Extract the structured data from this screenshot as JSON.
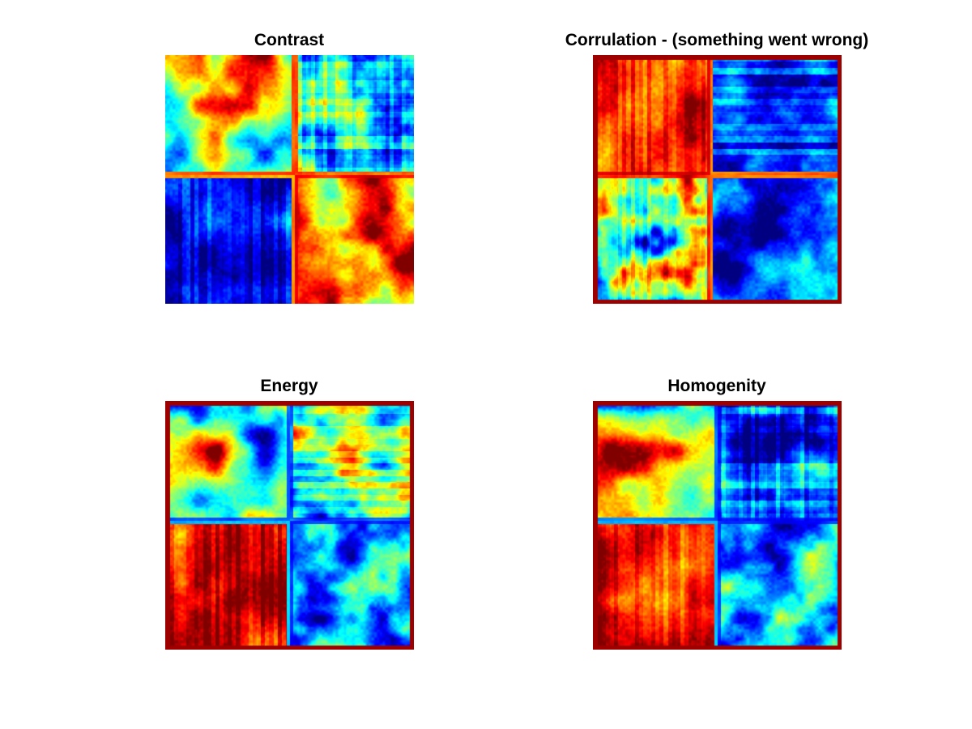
{
  "chart_data": [
    {
      "type": "heatmap",
      "title": "Contrast",
      "colormap": "jet",
      "axes_visible": false,
      "grid": false,
      "legend": "none",
      "quadrant_levels": {
        "top_left": "mixed: red/orange patches on cyan-blue",
        "top_right": "light blue/cyan with yellow streaks, thin red border",
        "bottom_left": "deep blue with lighter blue streaks",
        "bottom_right": "dark red/red blobs on yellow-cyan"
      }
    },
    {
      "type": "heatmap",
      "title": "Corrulation - (something went wrong)",
      "colormap": "jet",
      "axes_visible": false,
      "grid": false,
      "legend": "none",
      "quadrant_levels": {
        "top_left": "red/orange with vertical stripes",
        "top_right": "dark blue with horizontal cyan stripes",
        "bottom_left": "vertical stripes of red, yellow, cyan and blue",
        "bottom_right": "dark blue blobs on cyan"
      }
    },
    {
      "type": "heatmap",
      "title": "Energy",
      "colormap": "jet",
      "axes_visible": false,
      "grid": false,
      "legend": "none",
      "quadrant_levels": {
        "top_left": "dark blue blobs on red/orange",
        "top_right": "yellow/cyan with blue horizontal bands",
        "bottom_left": "red/orange",
        "bottom_right": "blue/cyan with yellow-red patches"
      }
    },
    {
      "type": "heatmap",
      "title": "Homogenity",
      "colormap": "jet",
      "axes_visible": false,
      "grid": false,
      "legend": "none",
      "quadrant_levels": {
        "top_left": "cyan/blue blobs on red/orange",
        "top_right": "dark blue with cyan streaks",
        "bottom_left": "red/orange",
        "bottom_right": "blue/cyan with yellow-orange patches"
      }
    }
  ]
}
